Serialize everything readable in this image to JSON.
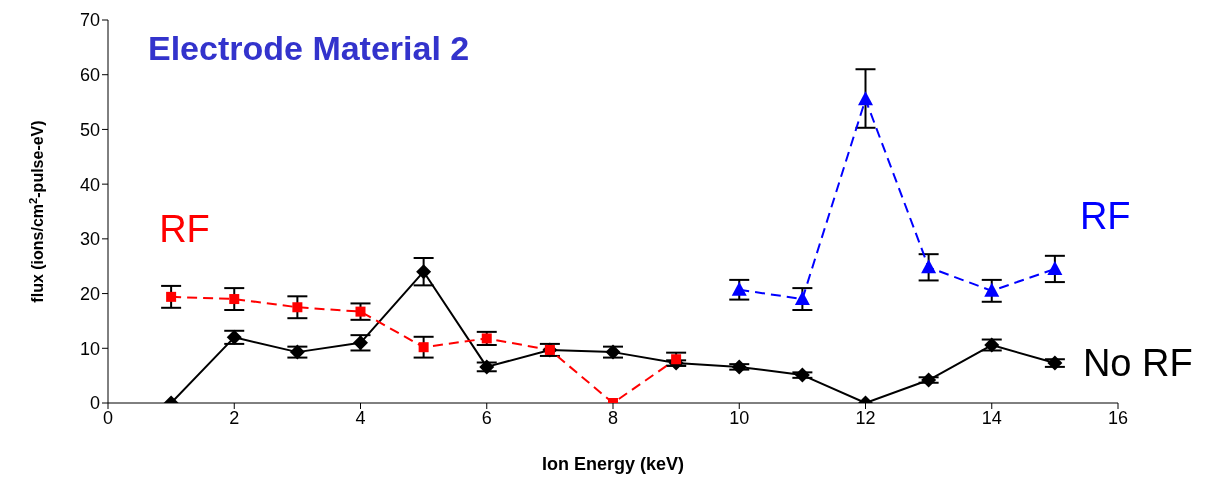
{
  "chart_data": {
    "type": "line",
    "title": "Electrode Material 2",
    "xlabel": "Ion Energy (keV)",
    "ylabel": "flux (ions/cm$^{2}$-pulse-eV)",
    "xlim": [
      0,
      16
    ],
    "xticks": [
      0,
      2,
      4,
      6,
      8,
      10,
      12,
      14,
      16
    ],
    "ylim": [
      0,
      70
    ],
    "yticks": [
      0,
      10,
      20,
      30,
      40,
      50,
      60,
      70
    ],
    "grid": false,
    "legend": false,
    "series": [
      {
        "name": "No RF",
        "color": "#000000",
        "marker": "diamond",
        "line_style": "solid",
        "x": [
          1,
          2,
          3,
          4,
          5,
          6,
          7,
          8,
          9,
          10,
          11,
          12,
          13,
          14,
          15
        ],
        "values": [
          0,
          12,
          9.3,
          11,
          24,
          6.6,
          9.7,
          9.3,
          7.3,
          6.6,
          5.1,
          0,
          4.2,
          10.6,
          7.3
        ],
        "errors": [
          null,
          1.2,
          1,
          1.4,
          2.5,
          0.8,
          null,
          1,
          0.5,
          0.5,
          0.5,
          null,
          0.5,
          1,
          0.7
        ]
      },
      {
        "name": "RF",
        "color": "#ff0000",
        "marker": "square",
        "line_style": "dashed",
        "x": [
          1,
          2,
          3,
          4,
          5,
          6,
          7,
          8,
          9
        ],
        "values": [
          19.4,
          19,
          17.5,
          16.7,
          10.2,
          11.8,
          9.7,
          0,
          8
        ],
        "errors": [
          2,
          2,
          2,
          1.5,
          1.9,
          1.2,
          1.1,
          null,
          1.2
        ]
      },
      {
        "name": "RF",
        "color": "#0000ff",
        "marker": "triangle",
        "line_style": "dashed",
        "x": [
          10,
          11,
          12,
          13,
          14,
          15
        ],
        "values": [
          20.7,
          19,
          55.5,
          24.8,
          20.5,
          24.5
        ],
        "errors": [
          1.8,
          2,
          [
            50.3,
            61
          ],
          2.4,
          2,
          2.4
        ]
      }
    ]
  }
}
